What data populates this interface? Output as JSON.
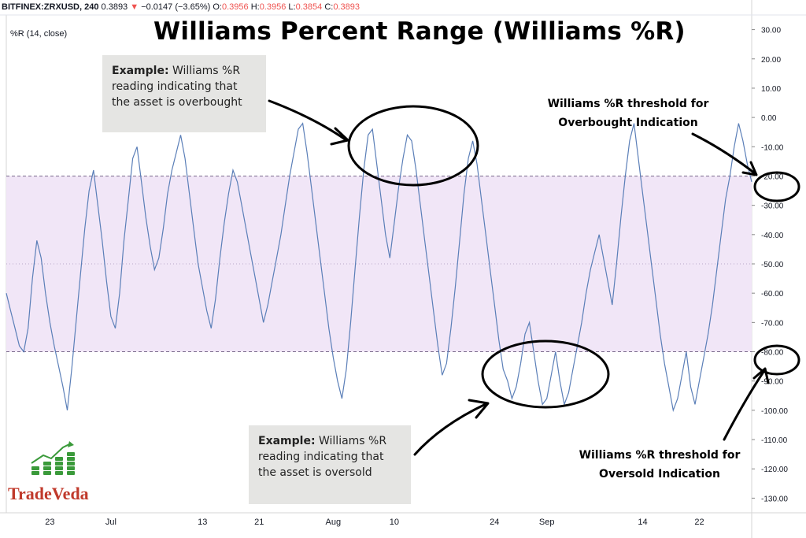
{
  "header": {
    "symbol": "BITFINEX:ZRXUSD, 240",
    "last": "0.3893",
    "arrow": "▼",
    "change": "−0.0147 (−3.65%)",
    "o_label": "O:",
    "o_value": "0.3956",
    "h_label": "H:",
    "h_value": "0.3956",
    "l_label": "L:",
    "l_value": "0.3854",
    "c_label": "C:",
    "c_value": "0.3893"
  },
  "indicator_label": "%R (14, close)",
  "title": "Williams Percent Range (Williams %R)",
  "notes": {
    "overbought_bold": "Example:",
    "overbought_text": " Williams %R reading indicating that the asset is overbought",
    "oversold_bold": "Example:",
    "oversold_text": " Williams %R reading indicating that the asset is oversold"
  },
  "callouts": {
    "overbought_threshold": "Williams %R threshold for Overbought Indication",
    "oversold_threshold": "Williams %R threshold for Oversold Indication"
  },
  "logo": {
    "name": "TradeVeda"
  },
  "colors": {
    "line": "#5b7fb8",
    "band_fill": "#f1e6f7",
    "dashed": "#7a6b8c",
    "axis_text": "#131722",
    "grid": "#f0f3fa"
  },
  "chart_data": {
    "type": "line",
    "title": "Williams Percent Range (Williams %R)",
    "ylim": [
      -135,
      35
    ],
    "y_ticks": [
      "30.00",
      "20.00",
      "10.00",
      "0.00",
      "-10.00",
      "-20.00",
      "-30.00",
      "-40.00",
      "-50.00",
      "-60.00",
      "-70.00",
      "-80.00",
      "-90.00",
      "-100.00",
      "-110.00",
      "-120.00",
      "-130.00"
    ],
    "y_tick_values": [
      30,
      20,
      10,
      0,
      -10,
      -20,
      -30,
      -40,
      -50,
      -60,
      -70,
      -80,
      -90,
      -100,
      -110,
      -120,
      -130
    ],
    "x_ticks": [
      "23",
      "Jul",
      "13",
      "21",
      "Aug",
      "10",
      "24",
      "Sep",
      "14",
      "22"
    ],
    "x_tick_index": [
      10,
      24,
      45,
      58,
      75,
      89,
      112,
      124,
      146,
      159
    ],
    "levels": {
      "overbought": -20,
      "middle": -50,
      "oversold": -80
    },
    "series": [
      {
        "values": [
          -60,
          -66,
          -72,
          -78,
          -80,
          -72,
          -55,
          -42,
          -48,
          -60,
          -70,
          -78,
          -85,
          -92,
          -100,
          -86,
          -70,
          -54,
          -38,
          -25,
          -18,
          -30,
          -42,
          -56,
          -68,
          -72,
          -60,
          -42,
          -28,
          -14,
          -10,
          -22,
          -34,
          -44,
          -52,
          -48,
          -38,
          -26,
          -18,
          -12,
          -6,
          -14,
          -26,
          -38,
          -50,
          -58,
          -66,
          -72,
          -62,
          -48,
          -36,
          -26,
          -18,
          -22,
          -30,
          -38,
          -46,
          -54,
          -62,
          -70,
          -64,
          -56,
          -48,
          -40,
          -30,
          -20,
          -12,
          -4,
          -2,
          -12,
          -24,
          -36,
          -48,
          -60,
          -72,
          -82,
          -90,
          -96,
          -86,
          -70,
          -52,
          -34,
          -18,
          -6,
          -4,
          -16,
          -28,
          -40,
          -48,
          -36,
          -24,
          -14,
          -6,
          -8,
          -18,
          -30,
          -42,
          -54,
          -66,
          -78,
          -88,
          -84,
          -72,
          -58,
          -42,
          -26,
          -14,
          -8,
          -16,
          -28,
          -40,
          -52,
          -64,
          -76,
          -86,
          -90,
          -96,
          -92,
          -84,
          -74,
          -70,
          -80,
          -90,
          -98,
          -96,
          -88,
          -80,
          -90,
          -98,
          -94,
          -86,
          -78,
          -70,
          -60,
          -52,
          -46,
          -40,
          -48,
          -56,
          -64,
          -50,
          -34,
          -20,
          -8,
          -2,
          -14,
          -26,
          -38,
          -50,
          -62,
          -74,
          -84,
          -92,
          -100,
          -96,
          -88,
          -80,
          -92,
          -98,
          -90,
          -82,
          -74,
          -64,
          -52,
          -40,
          -28,
          -20,
          -10,
          -2,
          -8,
          -16,
          -22
        ]
      }
    ],
    "annotations": [
      "Example: Williams %R reading indicating that the asset is overbought",
      "Example: Williams %R reading indicating that the asset is oversold",
      "Williams %R threshold for Overbought Indication",
      "Williams %R threshold for Oversold Indication"
    ]
  }
}
